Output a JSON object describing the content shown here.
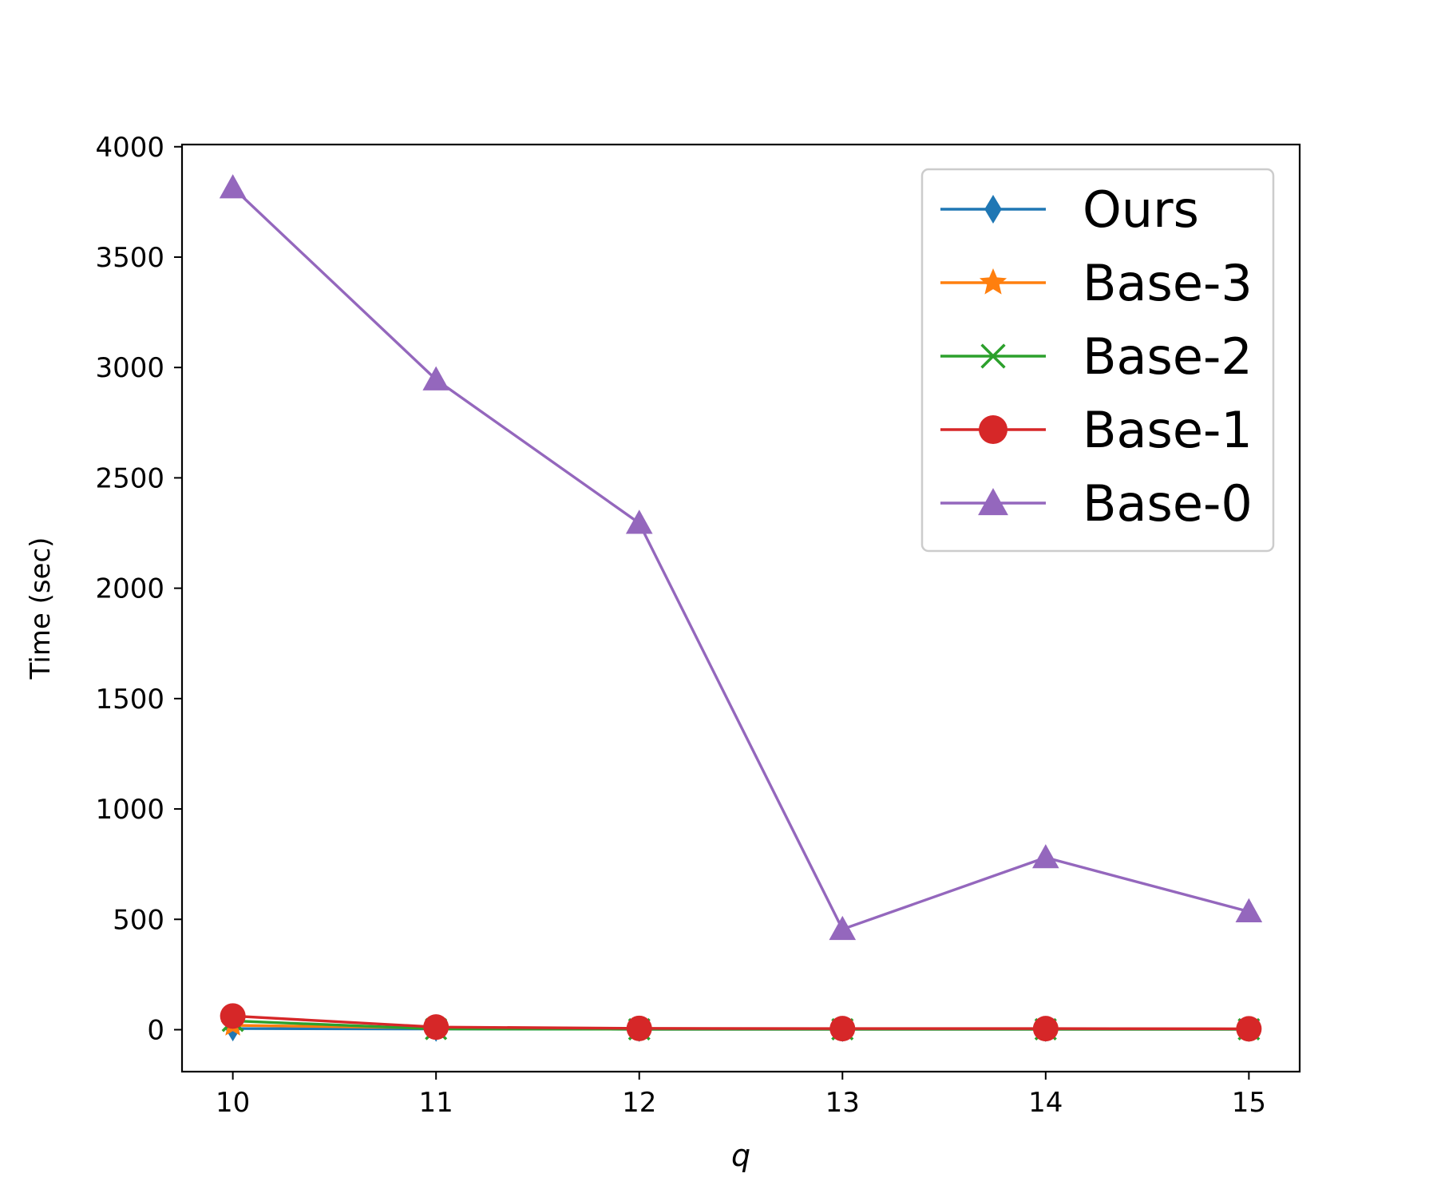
{
  "chart_data": {
    "type": "line",
    "title": "",
    "xlabel": "q",
    "ylabel": "Time (sec)",
    "x": [
      10,
      11,
      12,
      13,
      14,
      15
    ],
    "xticks": [
      "10",
      "11",
      "12",
      "13",
      "14",
      "15"
    ],
    "yticks": [
      "0",
      "500",
      "1000",
      "1500",
      "2000",
      "2500",
      "3000",
      "3500",
      "4000"
    ],
    "xlim": [
      9.75,
      15.25
    ],
    "ylim": [
      -190,
      4010
    ],
    "grid": false,
    "legend_position": "top-right",
    "series": [
      {
        "name": "Ours",
        "color": "#1f77b4",
        "marker": "diamond",
        "values": [
          5,
          3,
          2,
          2,
          2,
          2
        ]
      },
      {
        "name": "Base-3",
        "color": "#ff7f0e",
        "marker": "star",
        "values": [
          20,
          8,
          5,
          4,
          4,
          3
        ]
      },
      {
        "name": "Base-2",
        "color": "#2ca02c",
        "marker": "x",
        "values": [
          40,
          3,
          2,
          2,
          2,
          2
        ]
      },
      {
        "name": "Base-1",
        "color": "#d62728",
        "marker": "circle",
        "values": [
          62,
          12,
          6,
          5,
          5,
          4
        ]
      },
      {
        "name": "Base-0",
        "color": "#9467bd",
        "marker": "triangle",
        "values": [
          3815,
          2945,
          2295,
          455,
          780,
          535
        ]
      }
    ]
  }
}
